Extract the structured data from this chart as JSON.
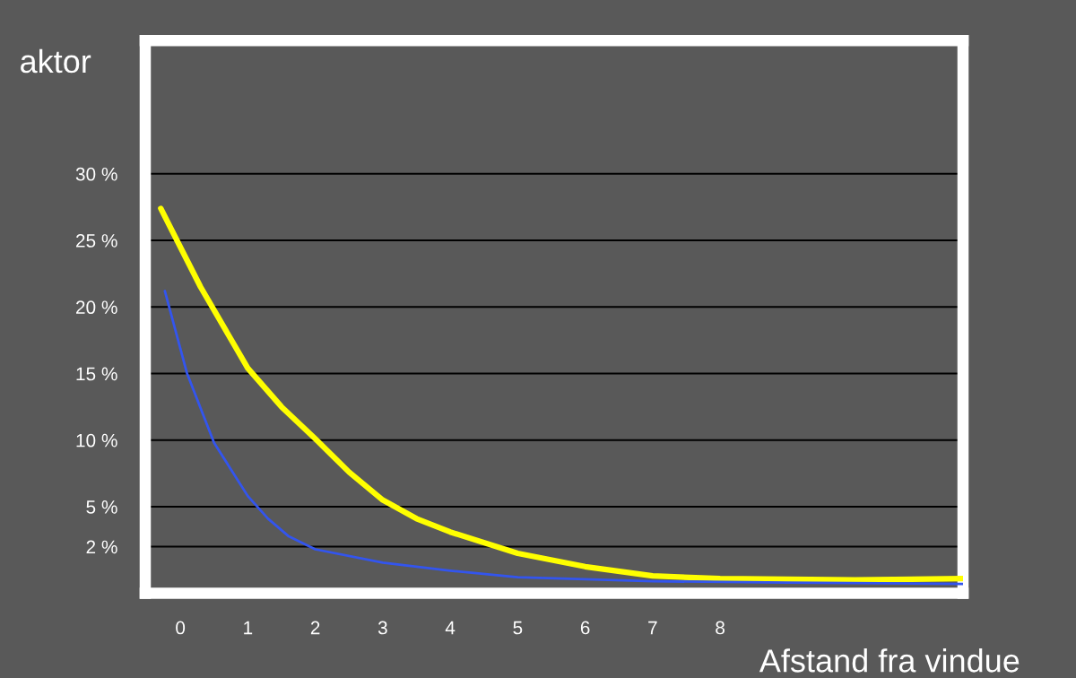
{
  "chart_data": {
    "type": "line",
    "ylabel": "aktor",
    "xlabel": "Afstand fra vindue",
    "xlim": [
      -0.52,
      11.6
    ],
    "xticks": [
      0,
      1,
      2,
      3,
      4,
      5,
      6,
      7,
      8
    ],
    "ylim": [
      -1.5,
      40
    ],
    "yticks": [
      {
        "value": 2,
        "label": "2 %"
      },
      {
        "value": 5,
        "label": "5 %"
      },
      {
        "value": 10,
        "label": "10 %"
      },
      {
        "value": 15,
        "label": "15 %"
      },
      {
        "value": 20,
        "label": "20 %"
      },
      {
        "value": 25,
        "label": "25 %"
      },
      {
        "value": 30,
        "label": "30 %"
      }
    ],
    "grid": "y",
    "marker": "none",
    "line_style": "solid",
    "series": [
      {
        "color": "#ffff00",
        "x": [
          -0.29,
          0.3,
          1,
          1.5,
          2,
          2.5,
          3,
          3.5,
          4,
          5,
          6,
          7,
          8,
          10,
          11.6
        ],
        "values": [
          27.4,
          21.5,
          15.4,
          12.5,
          10.1,
          7.6,
          5.5,
          4.1,
          3.1,
          1.5,
          0.5,
          -0.2,
          -0.4,
          -0.5,
          -0.4
        ]
      },
      {
        "color": "#3355ee",
        "x": [
          -0.23,
          0.1,
          0.5,
          1,
          1.3,
          1.6,
          2,
          3,
          4,
          5,
          7,
          9,
          11.6
        ],
        "values": [
          21.2,
          15,
          9.8,
          5.8,
          4.1,
          2.8,
          1.8,
          0.8,
          0.2,
          -0.3,
          -0.6,
          -0.7,
          -0.8
        ]
      }
    ]
  }
}
